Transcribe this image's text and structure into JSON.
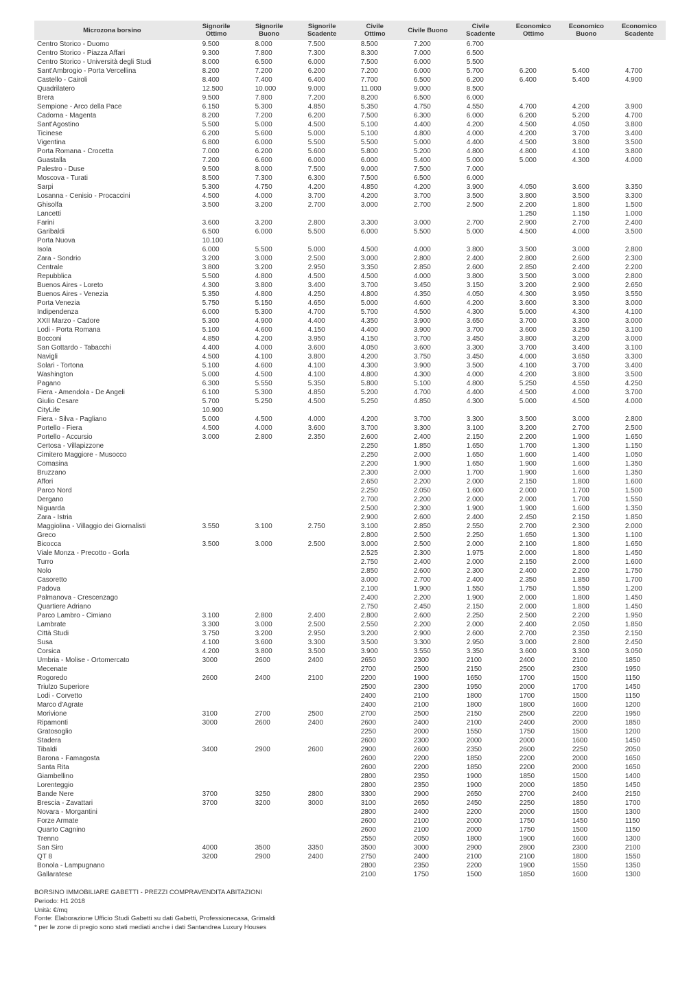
{
  "columns": [
    {
      "l1": "Microzona borsino",
      "l2": ""
    },
    {
      "l1": "Signorile",
      "l2": "Ottimo"
    },
    {
      "l1": "Signorile",
      "l2": "Buono"
    },
    {
      "l1": "Signorile",
      "l2": "Scadente"
    },
    {
      "l1": "Civile",
      "l2": "Ottimo"
    },
    {
      "l1": "Civile Buono",
      "l2": ""
    },
    {
      "l1": "Civile",
      "l2": "Scadente"
    },
    {
      "l1": "Economico",
      "l2": "Ottimo"
    },
    {
      "l1": "Economico",
      "l2": "Buono"
    },
    {
      "l1": "Economico",
      "l2": "Scadente"
    }
  ],
  "rows": [
    [
      "Centro Storico - Duomo",
      "9.500",
      "8.000",
      "7.500",
      "8.500",
      "7.200",
      "6.700",
      "",
      "",
      ""
    ],
    [
      "Centro Storico - Piazza Affari",
      "9.300",
      "7.800",
      "7.300",
      "8.300",
      "7.000",
      "6.500",
      "",
      "",
      ""
    ],
    [
      "Centro Storico - Università degli Studi",
      "8.000",
      "6.500",
      "6.000",
      "7.500",
      "6.000",
      "5.500",
      "",
      "",
      ""
    ],
    [
      "Sant'Ambrogio - Porta Vercellina",
      "8.200",
      "7.200",
      "6.200",
      "7.200",
      "6.000",
      "5.700",
      "6.200",
      "5.400",
      "4.700"
    ],
    [
      "Castello - Cairoli",
      "8.400",
      "7.400",
      "6.400",
      "7.700",
      "6.500",
      "6.200",
      "6.400",
      "5.400",
      "4.900"
    ],
    [
      "Quadrilatero",
      "12.500",
      "10.000",
      "9.000",
      "11.000",
      "9.000",
      "8.500",
      "",
      "",
      ""
    ],
    [
      "Brera",
      "9.500",
      "7.800",
      "7.200",
      "8.200",
      "6.500",
      "6.000",
      "",
      "",
      ""
    ],
    [
      "Sempione - Arco della Pace",
      "6.150",
      "5.300",
      "4.850",
      "5.350",
      "4.750",
      "4.550",
      "4.700",
      "4.200",
      "3.900"
    ],
    [
      "Cadorna - Magenta",
      "8.200",
      "7.200",
      "6.200",
      "7.500",
      "6.300",
      "6.000",
      "6.200",
      "5.200",
      "4.700"
    ],
    [
      "Sant'Agostino",
      "5.500",
      "5.000",
      "4.500",
      "5.100",
      "4.400",
      "4.200",
      "4.500",
      "4.050",
      "3.800"
    ],
    [
      "Ticinese",
      "6.200",
      "5.600",
      "5.000",
      "5.100",
      "4.800",
      "4.000",
      "4.200",
      "3.700",
      "3.400"
    ],
    [
      "Vigentina",
      "6.800",
      "6.000",
      "5.500",
      "5.500",
      "5.000",
      "4.400",
      "4.500",
      "3.800",
      "3.500"
    ],
    [
      "Porta Romana - Crocetta",
      "7.000",
      "6.200",
      "5.600",
      "5.800",
      "5.200",
      "4.800",
      "4.800",
      "4.100",
      "3.800"
    ],
    [
      "Guastalla",
      "7.200",
      "6.600",
      "6.000",
      "6.000",
      "5.400",
      "5.000",
      "5.000",
      "4.300",
      "4.000"
    ],
    [
      "Palestro - Duse",
      "9.500",
      "8.000",
      "7.500",
      "9.000",
      "7.500",
      "7.000",
      "",
      "",
      ""
    ],
    [
      "Moscova - Turati",
      "8.500",
      "7.300",
      "6.300",
      "7.500",
      "6.500",
      "6.000",
      "",
      "",
      ""
    ],
    [
      "Sarpi",
      "5.300",
      "4.750",
      "4.200",
      "4.850",
      "4.200",
      "3.900",
      "4.050",
      "3.600",
      "3.350"
    ],
    [
      "Losanna - Cenisio - Procaccini",
      "4.500",
      "4.000",
      "3.700",
      "4.200",
      "3.700",
      "3.500",
      "3.800",
      "3.500",
      "3.300"
    ],
    [
      "Ghisolfa",
      "3.500",
      "3.200",
      "2.700",
      "3.000",
      "2.700",
      "2.500",
      "2.200",
      "1.800",
      "1.500"
    ],
    [
      "Lancetti",
      "",
      "",
      "",
      "",
      "",
      "",
      "1.250",
      "1.150",
      "1.000"
    ],
    [
      "Farini",
      "3.600",
      "3.200",
      "2.800",
      "3.300",
      "3.000",
      "2.700",
      "2.900",
      "2.700",
      "2.400"
    ],
    [
      "Garibaldi",
      "6.500",
      "6.000",
      "5.500",
      "6.000",
      "5.500",
      "5.000",
      "4.500",
      "4.000",
      "3.500"
    ],
    [
      "Porta Nuova",
      "10.100",
      "",
      "",
      "",
      "",
      "",
      "",
      "",
      ""
    ],
    [
      "Isola",
      "6.000",
      "5.500",
      "5.000",
      "4.500",
      "4.000",
      "3.800",
      "3.500",
      "3.000",
      "2.800"
    ],
    [
      "Zara - Sondrio",
      "3.200",
      "3.000",
      "2.500",
      "3.000",
      "2.800",
      "2.400",
      "2.800",
      "2.600",
      "2.300"
    ],
    [
      "Centrale",
      "3.800",
      "3.200",
      "2.950",
      "3.350",
      "2.850",
      "2.600",
      "2.850",
      "2.400",
      "2.200"
    ],
    [
      "Repubblica",
      "5.500",
      "4.800",
      "4.500",
      "4.500",
      "4.000",
      "3.800",
      "3.500",
      "3.000",
      "2.800"
    ],
    [
      "Buenos Aires - Loreto",
      "4.300",
      "3.800",
      "3.400",
      "3.700",
      "3.450",
      "3.150",
      "3.200",
      "2.900",
      "2.650"
    ],
    [
      "Buenos Aires - Venezia",
      "5.350",
      "4.800",
      "4.250",
      "4.800",
      "4.350",
      "4.050",
      "4.300",
      "3.950",
      "3.550"
    ],
    [
      "Porta Venezia",
      "5.750",
      "5.150",
      "4.650",
      "5.000",
      "4.600",
      "4.200",
      "3.600",
      "3.300",
      "3.000"
    ],
    [
      "Indipendenza",
      "6.000",
      "5.300",
      "4.700",
      "5.700",
      "4.500",
      "4.300",
      "5.000",
      "4.300",
      "4.100"
    ],
    [
      "XXII Marzo - Cadore",
      "5.300",
      "4.900",
      "4.400",
      "4.350",
      "3.900",
      "3.650",
      "3.700",
      "3.300",
      "3.000"
    ],
    [
      "Lodi - Porta Romana",
      "5.100",
      "4.600",
      "4.150",
      "4.400",
      "3.900",
      "3.700",
      "3.600",
      "3.250",
      "3.100"
    ],
    [
      "Bocconi",
      "4.850",
      "4.200",
      "3.950",
      "4.150",
      "3.700",
      "3.450",
      "3.800",
      "3.200",
      "3.000"
    ],
    [
      "San Gottardo - Tabacchi",
      "4.400",
      "4.000",
      "3.600",
      "4.050",
      "3.600",
      "3.300",
      "3.700",
      "3.400",
      "3.100"
    ],
    [
      "Navigli",
      "4.500",
      "4.100",
      "3.800",
      "4.200",
      "3.750",
      "3.450",
      "4.000",
      "3.650",
      "3.300"
    ],
    [
      "Solari - Tortona",
      "5.100",
      "4.600",
      "4.100",
      "4.300",
      "3.900",
      "3.500",
      "4.100",
      "3.700",
      "3.400"
    ],
    [
      "Washington",
      "5.000",
      "4.500",
      "4.100",
      "4.800",
      "4.300",
      "4.000",
      "4.200",
      "3.800",
      "3.500"
    ],
    [
      "Pagano",
      "6.300",
      "5.550",
      "5.350",
      "5.800",
      "5.100",
      "4.800",
      "5.250",
      "4.550",
      "4.250"
    ],
    [
      "Fiera - Amendola - De Angeli",
      "6.100",
      "5.300",
      "4.850",
      "5.200",
      "4.700",
      "4.400",
      "4.500",
      "4.000",
      "3.700"
    ],
    [
      "Giulio Cesare",
      "5.700",
      "5.250",
      "4.500",
      "5.250",
      "4.850",
      "4.300",
      "5.000",
      "4.500",
      "4.000"
    ],
    [
      "CityLife",
      "10.900",
      "",
      "",
      "",
      "",
      "",
      "",
      "",
      ""
    ],
    [
      "Fiera - Silva - Pagliano",
      "5.000",
      "4.500",
      "4.000",
      "4.200",
      "3.700",
      "3.300",
      "3.500",
      "3.000",
      "2.800"
    ],
    [
      "Portello - Fiera",
      "4.500",
      "4.000",
      "3.600",
      "3.700",
      "3.300",
      "3.100",
      "3.200",
      "2.700",
      "2.500"
    ],
    [
      "Portello - Accursio",
      "3.000",
      "2.800",
      "2.350",
      "2.600",
      "2.400",
      "2.150",
      "2.200",
      "1.900",
      "1.650"
    ],
    [
      "Certosa - Villapizzone",
      "",
      "",
      "",
      "2.250",
      "1.850",
      "1.650",
      "1.700",
      "1.300",
      "1.150"
    ],
    [
      "Cimitero Maggiore - Musocco",
      "",
      "",
      "",
      "2.250",
      "2.000",
      "1.650",
      "1.600",
      "1.400",
      "1.050"
    ],
    [
      "Comasina",
      "",
      "",
      "",
      "2.200",
      "1.900",
      "1.650",
      "1.900",
      "1.600",
      "1.350"
    ],
    [
      "Bruzzano",
      "",
      "",
      "",
      "2.300",
      "2.000",
      "1.700",
      "1.900",
      "1.600",
      "1.350"
    ],
    [
      "Affori",
      "",
      "",
      "",
      "2.650",
      "2.200",
      "2.000",
      "2.150",
      "1.800",
      "1.600"
    ],
    [
      "Parco Nord",
      "",
      "",
      "",
      "2.250",
      "2.050",
      "1.600",
      "2.000",
      "1.700",
      "1.500"
    ],
    [
      "Dergano",
      "",
      "",
      "",
      "2.700",
      "2.200",
      "2.000",
      "2.000",
      "1.700",
      "1.550"
    ],
    [
      "Niguarda",
      "",
      "",
      "",
      "2.500",
      "2.300",
      "1.900",
      "1.900",
      "1.600",
      "1.350"
    ],
    [
      "Zara - Istria",
      "",
      "",
      "",
      "2.900",
      "2.600",
      "2.400",
      "2.450",
      "2.150",
      "1.850"
    ],
    [
      "Maggiolina - Villaggio dei Giornalisti",
      "3.550",
      "3.100",
      "2.750",
      "3.100",
      "2.850",
      "2.550",
      "2.700",
      "2.300",
      "2.000"
    ],
    [
      "Greco",
      "",
      "",
      "",
      "2.800",
      "2.500",
      "2.250",
      "1.650",
      "1.300",
      "1.100"
    ],
    [
      "Bicocca",
      "3.500",
      "3.000",
      "2.500",
      "3.000",
      "2.500",
      "2.000",
      "2.100",
      "1.800",
      "1.650"
    ],
    [
      "Viale Monza - Precotto - Gorla",
      "",
      "",
      "",
      "2.525",
      "2.300",
      "1.975",
      "2.000",
      "1.800",
      "1.450"
    ],
    [
      "Turro",
      "",
      "",
      "",
      "2.750",
      "2.400",
      "2.000",
      "2.150",
      "2.000",
      "1.600"
    ],
    [
      "Nolo",
      "",
      "",
      "",
      "2.850",
      "2.600",
      "2.300",
      "2.400",
      "2.200",
      "1.750"
    ],
    [
      "Casoretto",
      "",
      "",
      "",
      "3.000",
      "2.700",
      "2.400",
      "2.350",
      "1.850",
      "1.700"
    ],
    [
      "Padova",
      "",
      "",
      "",
      "2.100",
      "1.900",
      "1.550",
      "1.750",
      "1.550",
      "1.200"
    ],
    [
      "Palmanova - Crescenzago",
      "",
      "",
      "",
      "2.400",
      "2.200",
      "1.900",
      "2.000",
      "1.800",
      "1.450"
    ],
    [
      "Quartiere Adriano",
      "",
      "",
      "",
      "2.750",
      "2.450",
      "2.150",
      "2.000",
      "1.800",
      "1.450"
    ],
    [
      "Parco Lambro - Cimiano",
      "3.100",
      "2.800",
      "2.400",
      "2.800",
      "2.600",
      "2.250",
      "2.500",
      "2.200",
      "1.950"
    ],
    [
      "Lambrate",
      "3.300",
      "3.000",
      "2.500",
      "2.550",
      "2.200",
      "2.000",
      "2.400",
      "2.050",
      "1.850"
    ],
    [
      "Città Studi",
      "3.750",
      "3.200",
      "2.950",
      "3.200",
      "2.900",
      "2.600",
      "2.700",
      "2.350",
      "2.150"
    ],
    [
      "Susa",
      "4.100",
      "3.600",
      "3.300",
      "3.500",
      "3.300",
      "2.950",
      "3.000",
      "2.800",
      "2.450"
    ],
    [
      "Corsica",
      "4.200",
      "3.800",
      "3.500",
      "3.900",
      "3.550",
      "3.350",
      "3.600",
      "3.300",
      "3.050"
    ],
    [
      "Umbria - Molise - Ortomercato",
      "3000",
      "2600",
      "2400",
      "2650",
      "2300",
      "2100",
      "2400",
      "2100",
      "1850"
    ],
    [
      "Mecenate",
      "",
      "",
      "",
      "2700",
      "2500",
      "2150",
      "2500",
      "2300",
      "1950"
    ],
    [
      "Rogoredo",
      "2600",
      "2400",
      "2100",
      "2200",
      "1900",
      "1650",
      "1700",
      "1500",
      "1150"
    ],
    [
      "Triulzo Superiore",
      "",
      "",
      "",
      "2500",
      "2300",
      "1950",
      "2000",
      "1700",
      "1450"
    ],
    [
      "Lodi - Corvetto",
      "",
      "",
      "",
      "2400",
      "2100",
      "1800",
      "1700",
      "1500",
      "1150"
    ],
    [
      "Marco d'Agrate",
      "",
      "",
      "",
      "2400",
      "2100",
      "1800",
      "1800",
      "1600",
      "1200"
    ],
    [
      "Morivione",
      "3100",
      "2700",
      "2500",
      "2700",
      "2500",
      "2150",
      "2500",
      "2200",
      "1950"
    ],
    [
      "Ripamonti",
      "3000",
      "2600",
      "2400",
      "2600",
      "2400",
      "2100",
      "2400",
      "2000",
      "1850"
    ],
    [
      "Gratosoglio",
      "",
      "",
      "",
      "2250",
      "2000",
      "1550",
      "1750",
      "1500",
      "1200"
    ],
    [
      "Stadera",
      "",
      "",
      "",
      "2600",
      "2300",
      "2000",
      "2000",
      "1600",
      "1450"
    ],
    [
      "Tibaldi",
      "3400",
      "2900",
      "2600",
      "2900",
      "2600",
      "2350",
      "2600",
      "2250",
      "2050"
    ],
    [
      "Barona - Famagosta",
      "",
      "",
      "",
      "2600",
      "2200",
      "1850",
      "2200",
      "2000",
      "1650"
    ],
    [
      "Santa Rita",
      "",
      "",
      "",
      "2600",
      "2200",
      "1850",
      "2200",
      "2000",
      "1650"
    ],
    [
      "Giambellino",
      "",
      "",
      "",
      "2800",
      "2350",
      "1900",
      "1850",
      "1500",
      "1400"
    ],
    [
      "Lorenteggio",
      "",
      "",
      "",
      "2800",
      "2350",
      "1900",
      "2000",
      "1850",
      "1450"
    ],
    [
      "Bande Nere",
      "3700",
      "3250",
      "2800",
      "3300",
      "2900",
      "2650",
      "2700",
      "2400",
      "2150"
    ],
    [
      "Brescia - Zavattari",
      "3700",
      "3200",
      "3000",
      "3100",
      "2650",
      "2450",
      "2250",
      "1850",
      "1700"
    ],
    [
      "Novara - Morgantini",
      "",
      "",
      "",
      "2800",
      "2400",
      "2200",
      "2000",
      "1500",
      "1300"
    ],
    [
      "Forze Armate",
      "",
      "",
      "",
      "2600",
      "2100",
      "2000",
      "1750",
      "1450",
      "1150"
    ],
    [
      "Quarto Cagnino",
      "",
      "",
      "",
      "2600",
      "2100",
      "2000",
      "1750",
      "1500",
      "1150"
    ],
    [
      "Trenno",
      "",
      "",
      "",
      "2550",
      "2050",
      "1800",
      "1900",
      "1600",
      "1300"
    ],
    [
      "San Siro",
      "4000",
      "3500",
      "3350",
      "3500",
      "3000",
      "2900",
      "2800",
      "2300",
      "2100"
    ],
    [
      "QT 8",
      "3200",
      "2900",
      "2400",
      "2750",
      "2400",
      "2100",
      "2100",
      "1800",
      "1550"
    ],
    [
      "Bonola - Lampugnano",
      "",
      "",
      "",
      "2800",
      "2350",
      "2200",
      "1900",
      "1550",
      "1350"
    ],
    [
      "Gallaratese",
      "",
      "",
      "",
      "2100",
      "1750",
      "1500",
      "1850",
      "1600",
      "1300"
    ]
  ],
  "footer": {
    "line1": "BORSINO IMMOBILIARE GABETTI - PREZZI COMPRAVENDITA ABITAZIONI",
    "line2": "Periodo: H1 2018",
    "line3": "Unità: €/mq",
    "line4": "Fonte: Elaborazione Ufficio Studi Gabetti su dati Gabetti, Professionecasa, Grimaldi",
    "line5": "* per le zone di pregio sono stati mediati anche i dati Santandrea Luxury Houses"
  }
}
